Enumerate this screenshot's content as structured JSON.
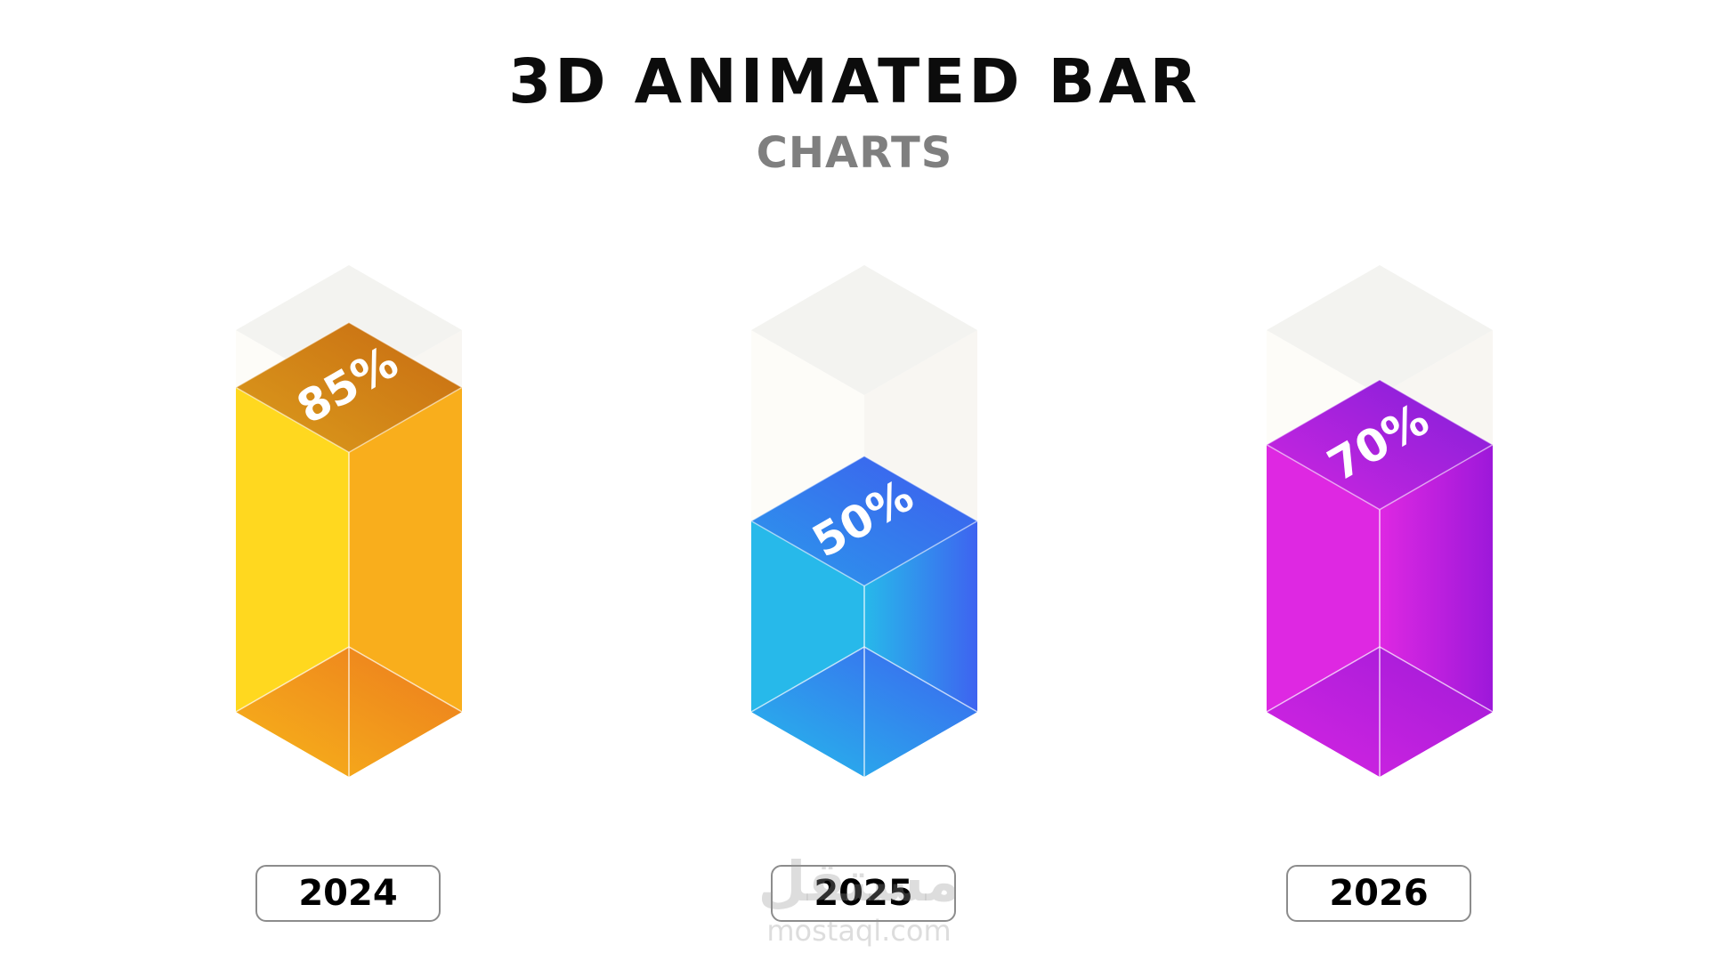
{
  "header": {
    "title": "3D ANIMATED BAR",
    "subtitle": "CHARTS"
  },
  "chart_data": {
    "type": "bar",
    "categories": [
      "2024",
      "2025",
      "2026"
    ],
    "values": [
      85,
      50,
      70
    ],
    "value_labels": [
      "85%",
      "50%",
      "70%"
    ],
    "title": "3D ANIMATED BAR",
    "subtitle": "CHARTS",
    "ylim": [
      0,
      100
    ],
    "grid": false,
    "legend": "none",
    "colors": [
      {
        "front": "#FFD81F",
        "side": "#F9AE1C",
        "top_a": "#DC9D1C",
        "top_b": "#C76A12",
        "bottom_a": "#F7B51A",
        "bottom_b": "#EC7A1E"
      },
      {
        "front": "#27B9EA",
        "side": "#3E63F0",
        "top_a": "#2A9BEC",
        "top_b": "#3F5AEE",
        "bottom_a": "#25BBEB",
        "bottom_b": "#3C63EF"
      },
      {
        "front": "#DE28E2",
        "side": "#9D18DA",
        "top_a": "#D226E0",
        "top_b": "#7F1FD9",
        "bottom_a": "#D525E2",
        "bottom_b": "#A01BD8"
      }
    ]
  },
  "watermark": {
    "arabic": "مستقل",
    "latin": "mostaql.com"
  }
}
